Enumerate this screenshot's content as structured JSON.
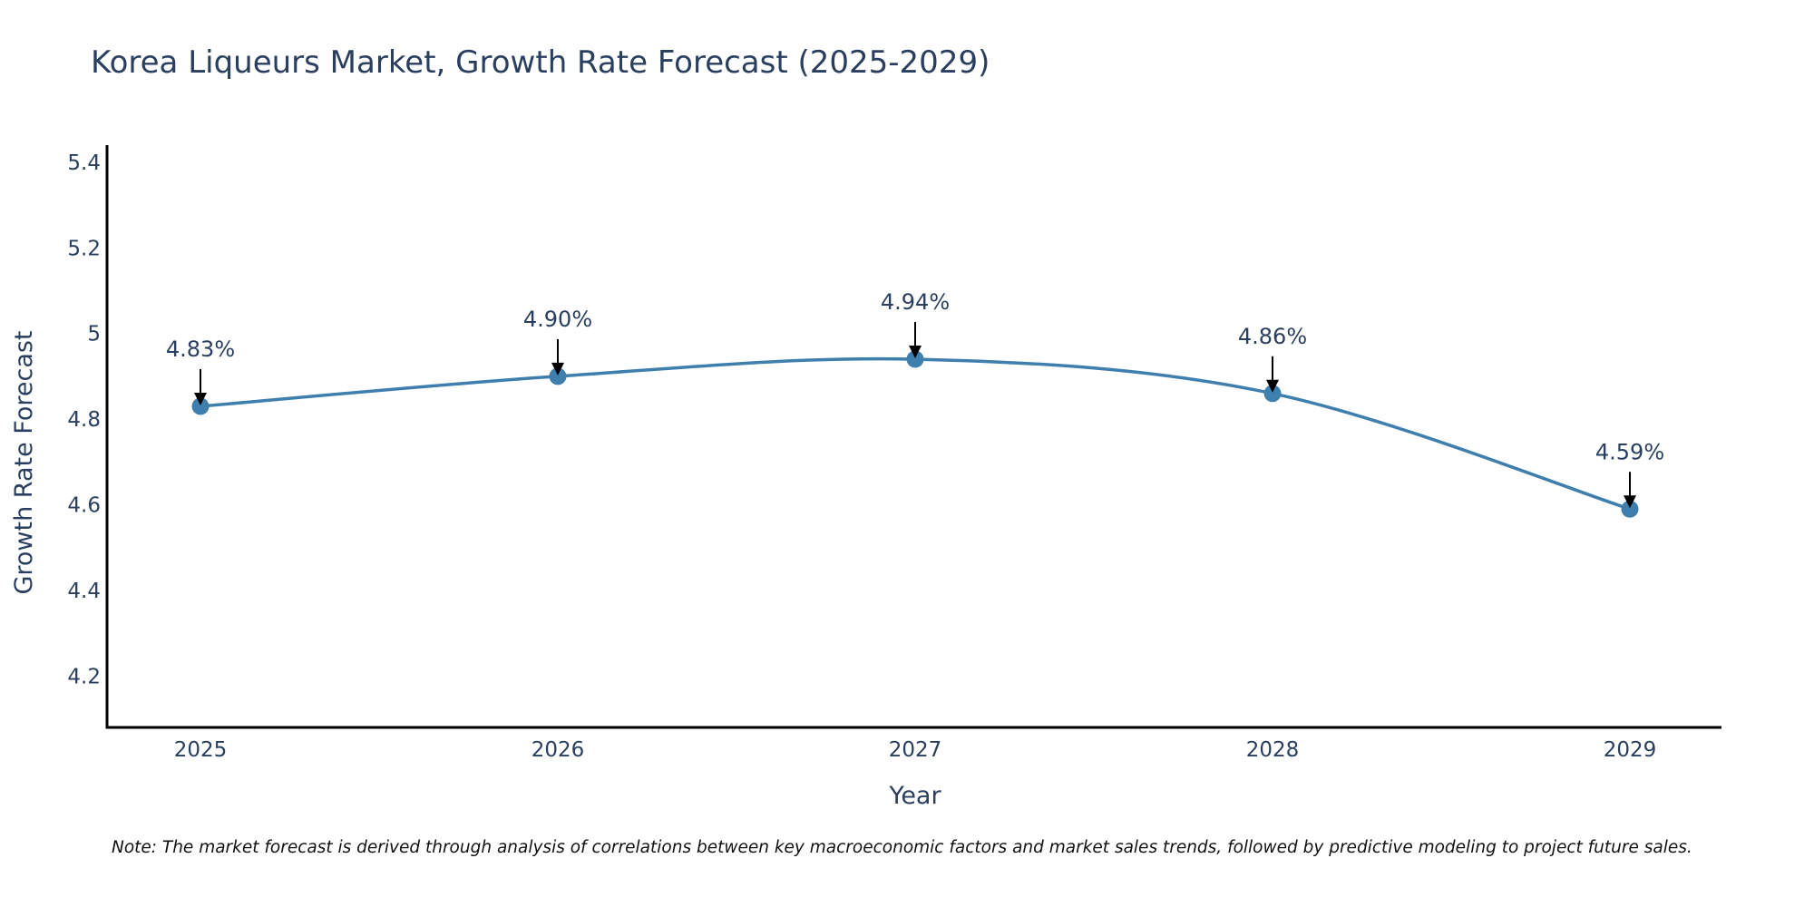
{
  "chart_data": {
    "type": "line",
    "title": "Korea Liqueurs Market, Growth Rate Forecast (2025-2029)",
    "xlabel": "Year",
    "ylabel": "Growth Rate Forecast",
    "categories": [
      "2025",
      "2026",
      "2027",
      "2028",
      "2029"
    ],
    "series": [
      {
        "values": [
          4.83,
          4.9,
          4.94,
          4.86,
          4.59
        ],
        "color": "#3f7fad"
      }
    ],
    "data_labels": [
      "4.83%",
      "4.90%",
      "4.94%",
      "4.86%",
      "4.59%"
    ],
    "ylim": [
      4.08,
      5.44
    ],
    "y_ticks": [
      4.2,
      4.4,
      4.6,
      4.8,
      5,
      5.2,
      5.4
    ],
    "y_tick_labels": [
      "4.2",
      "4.4",
      "4.6",
      "4.8",
      "5",
      "5.2",
      "5.4"
    ],
    "line_shape": "spline",
    "grid": false,
    "legend": "none",
    "annotation_arrow_color": "#000000",
    "axis_line_color": "#000000"
  },
  "note": "Note: The market forecast is derived through analysis of correlations between key macroeconomic factors and market sales trends, followed by predictive modeling to project future sales."
}
